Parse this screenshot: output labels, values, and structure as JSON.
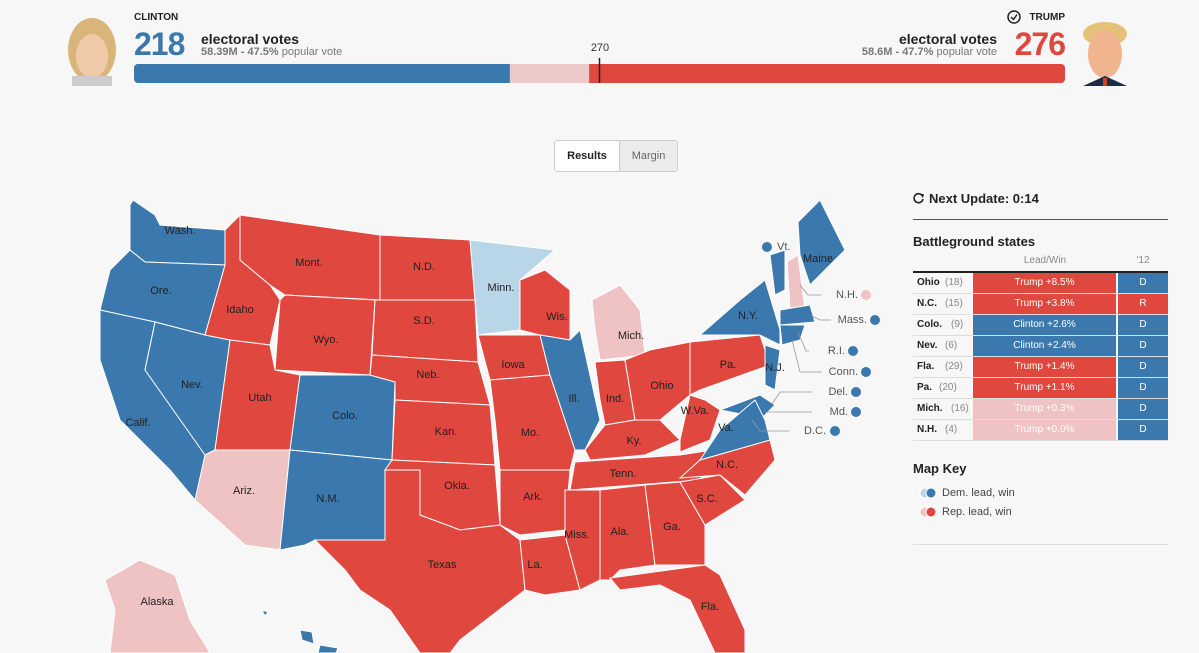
{
  "header": {
    "clinton": {
      "name": "CLINTON",
      "electoral_votes": 218,
      "ev_label": "electoral votes",
      "popular": "58.39M - 47.5%",
      "popular_label": "popular vote",
      "color": "#3a78ad"
    },
    "trump": {
      "name": "TRUMP",
      "electoral_votes": 276,
      "ev_label": "electoral votes",
      "popular": "58.6M - 47.7%",
      "popular_label": "popular vote",
      "color": "#e0473e"
    },
    "threshold": 270
  },
  "toggle": {
    "options": [
      "Results",
      "Margin"
    ],
    "active": 0
  },
  "map": {
    "states": [
      {
        "label": "Wash.",
        "color": "#3a78ad"
      },
      {
        "label": "Ore.",
        "color": "#3a78ad"
      },
      {
        "label": "Calif.",
        "color": "#3a78ad"
      },
      {
        "label": "Nev.",
        "color": "#3a78ad"
      },
      {
        "label": "Idaho",
        "color": "#e0473e"
      },
      {
        "label": "Mont.",
        "color": "#e0473e"
      },
      {
        "label": "Wyo.",
        "color": "#e0473e"
      },
      {
        "label": "Utah",
        "color": "#e0473e"
      },
      {
        "label": "Ariz.",
        "color": "#efc3c3"
      },
      {
        "label": "Colo.",
        "color": "#3a78ad"
      },
      {
        "label": "N.M.",
        "color": "#3a78ad"
      },
      {
        "label": "N.D.",
        "color": "#e0473e"
      },
      {
        "label": "S.D.",
        "color": "#e0473e"
      },
      {
        "label": "Neb.",
        "color": "#e0473e"
      },
      {
        "label": "Kan.",
        "color": "#e0473e"
      },
      {
        "label": "Okla.",
        "color": "#e0473e"
      },
      {
        "label": "Texas",
        "color": "#e0473e"
      },
      {
        "label": "Minn.",
        "color": "#b9d6e8"
      },
      {
        "label": "Iowa",
        "color": "#e0473e"
      },
      {
        "label": "Mo.",
        "color": "#e0473e"
      },
      {
        "label": "Ark.",
        "color": "#e0473e"
      },
      {
        "label": "La.",
        "color": "#e0473e"
      },
      {
        "label": "Wis.",
        "color": "#e0473e"
      },
      {
        "label": "Ill.",
        "color": "#3a78ad"
      },
      {
        "label": "Mich.",
        "color": "#efc3c3"
      },
      {
        "label": "Ind.",
        "color": "#e0473e"
      },
      {
        "label": "Ohio",
        "color": "#e0473e"
      },
      {
        "label": "Ky.",
        "color": "#e0473e"
      },
      {
        "label": "Tenn.",
        "color": "#e0473e"
      },
      {
        "label": "Miss.",
        "color": "#e0473e"
      },
      {
        "label": "Ala.",
        "color": "#e0473e"
      },
      {
        "label": "Ga.",
        "color": "#e0473e"
      },
      {
        "label": "Fla.",
        "color": "#e0473e"
      },
      {
        "label": "S.C.",
        "color": "#e0473e"
      },
      {
        "label": "N.C.",
        "color": "#e0473e"
      },
      {
        "label": "Va.",
        "color": "#3a78ad"
      },
      {
        "label": "W.Va.",
        "color": "#e0473e"
      },
      {
        "label": "Pa.",
        "color": "#e0473e"
      },
      {
        "label": "N.Y.",
        "color": "#3a78ad"
      },
      {
        "label": "N.J.",
        "color": "#3a78ad"
      },
      {
        "label": "Maine",
        "color": "#3a78ad"
      },
      {
        "label": "Alaska",
        "color": "#efc3c3"
      }
    ],
    "callouts": [
      {
        "label": "Vt.",
        "color": "#3a78ad"
      },
      {
        "label": "N.H.",
        "color": "#efc3c3"
      },
      {
        "label": "Mass.",
        "color": "#3a78ad"
      },
      {
        "label": "R.I.",
        "color": "#3a78ad"
      },
      {
        "label": "Conn.",
        "color": "#3a78ad"
      },
      {
        "label": "Del.",
        "color": "#3a78ad"
      },
      {
        "label": "Md.",
        "color": "#3a78ad"
      },
      {
        "label": "D.C.",
        "color": "#3a78ad"
      }
    ]
  },
  "panel": {
    "next_update": "Next Update: 0:14",
    "battleground": {
      "title": "Battleground states",
      "columns": [
        "Lead/Win",
        "'12"
      ],
      "rows": [
        {
          "state": "Ohio",
          "votes": "(18)",
          "lead": "Trump +8.5%",
          "lead_color": "#e0473e",
          "prev": "D",
          "prev_color": "#3a78ad"
        },
        {
          "state": "N.C.",
          "votes": "(15)",
          "lead": "Trump +3.8%",
          "lead_color": "#e0473e",
          "prev": "R",
          "prev_color": "#e0473e"
        },
        {
          "state": "Colo.",
          "votes": "(9)",
          "lead": "Clinton +2.6%",
          "lead_color": "#3a78ad",
          "prev": "D",
          "prev_color": "#3a78ad"
        },
        {
          "state": "Nev.",
          "votes": "(6)",
          "lead": "Clinton +2.4%",
          "lead_color": "#3a78ad",
          "prev": "D",
          "prev_color": "#3a78ad"
        },
        {
          "state": "Fla.",
          "votes": "(29)",
          "lead": "Trump +1.4%",
          "lead_color": "#e0473e",
          "prev": "D",
          "prev_color": "#3a78ad"
        },
        {
          "state": "Pa.",
          "votes": "(20)",
          "lead": "Trump +1.1%",
          "lead_color": "#e0473e",
          "prev": "D",
          "prev_color": "#3a78ad"
        },
        {
          "state": "Mich.",
          "votes": "(16)",
          "lead": "Trump +0.3%",
          "lead_color": "#efc3c3",
          "prev": "D",
          "prev_color": "#3a78ad"
        },
        {
          "state": "N.H.",
          "votes": "(4)",
          "lead": "Trump +0.0%",
          "lead_color": "#efc3c3",
          "prev": "D",
          "prev_color": "#3a78ad"
        }
      ]
    },
    "map_key": {
      "title": "Map Key",
      "items": [
        {
          "label": "Dem. lead, win",
          "colors": [
            "#b9d6e8",
            "#3a78ad"
          ]
        },
        {
          "label": "Rep. lead, win",
          "colors": [
            "#efc3c3",
            "#e0473e"
          ]
        }
      ]
    }
  }
}
